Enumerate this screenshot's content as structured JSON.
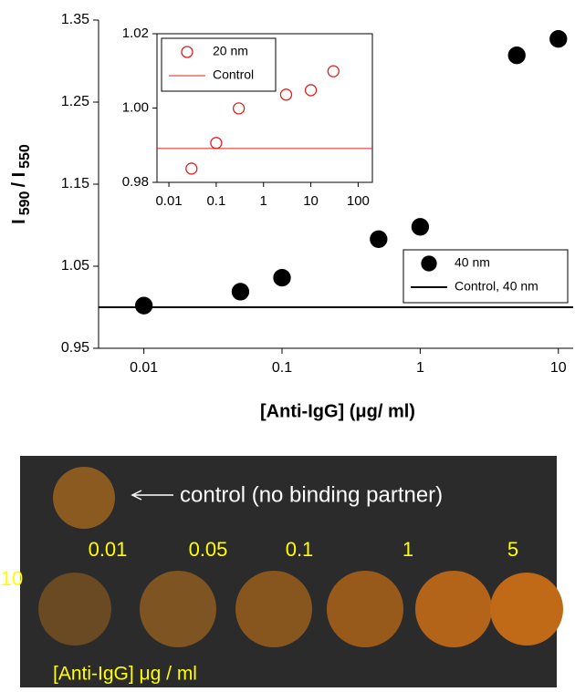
{
  "chart_data": [
    {
      "type": "scatter",
      "xscale": "log",
      "ylabel": [
        "I",
        "590",
        "/ I",
        "550"
      ],
      "xlabel": "[Anti-IgG]  (μg/ ml)",
      "xlim": [
        0.0047,
        12.8
      ],
      "xticks": [
        0.01,
        0.1,
        1,
        10
      ],
      "ylim": [
        0.95,
        1.35
      ],
      "yticks": [
        0.95,
        1.05,
        1.15,
        1.25,
        1.35
      ],
      "legend": "lower right",
      "series": [
        {
          "name": "40 nm",
          "color": "#000000",
          "marker": "filled",
          "x": [
            0.01,
            0.05,
            0.1,
            0.5,
            1,
            5,
            10
          ],
          "values": [
            1.002,
            1.019,
            1.036,
            1.083,
            1.098,
            1.307,
            1.327
          ]
        },
        {
          "name": "Control, 40 nm",
          "color": "#000000",
          "marker": "hline",
          "value": 1.0
        }
      ]
    },
    {
      "type": "scatter",
      "xscale": "log",
      "xlim": [
        0.0056,
        200
      ],
      "xticks": [
        0.01,
        0.1,
        1,
        10,
        100
      ],
      "ylim": [
        0.98,
        1.02
      ],
      "yticks": [
        {
          "value": 0.98,
          "label": "0.98"
        },
        {
          "value": 1.0,
          "label": "1.00"
        },
        {
          "value": 1.02,
          "label": "1.02"
        }
      ],
      "legend": "upper left",
      "series": [
        {
          "name": "20 nm",
          "color": "#e0201b",
          "marker": "open",
          "x": [
            0.03,
            0.1,
            0.3,
            3,
            10,
            30
          ],
          "values": [
            0.9837,
            0.9906,
            0.9999,
            1.0036,
            1.0048,
            1.0099
          ]
        },
        {
          "name": "Control",
          "color": "#e0201b",
          "marker": "hline",
          "value": 0.9891
        }
      ]
    }
  ],
  "photo": {
    "annotation": "control (no binding partner)",
    "labels": [
      "0.01",
      "0.05",
      "0.1",
      "1",
      "5",
      "10"
    ],
    "caption": "[Anti-IgG]  μg / ml"
  }
}
